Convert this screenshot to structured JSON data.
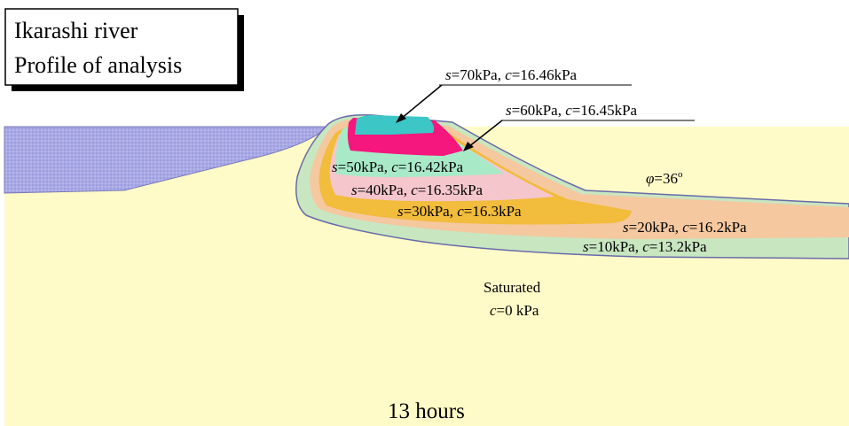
{
  "title": {
    "line1": "Ikarashi river",
    "line2": "Profile of analysis"
  },
  "zones": [
    {
      "s": "s",
      "s_value": "=70kPa, ",
      "c": "c",
      "c_value": "=16.46kPa"
    },
    {
      "s": "s",
      "s_value": "=60kPa, ",
      "c": "c",
      "c_value": "=16.45kPa"
    },
    {
      "s": "s",
      "s_value": "=50kPa, ",
      "c": "c",
      "c_value": "=16.42kPa"
    },
    {
      "s": "s",
      "s_value": "=40kPa, ",
      "c": "c",
      "c_value": "=16.35kPa"
    },
    {
      "s": "s",
      "s_value": "=30kPa, ",
      "c": "c",
      "c_value": "=16.3kPa"
    },
    {
      "s": "s",
      "s_value": "=20kPa, ",
      "c": "c",
      "c_value": "=16.2kPa"
    },
    {
      "s": "s",
      "s_value": "=10kPa, ",
      "c": "c",
      "c_value": "=13.2kPa"
    }
  ],
  "phi": {
    "symbol": "φ",
    "value": "=36",
    "unit": "o"
  },
  "saturated": {
    "line1": "Saturated",
    "c": "c",
    "c_value": "=0 kPa"
  },
  "time_label": "13 hours",
  "colors": {
    "water": "#A9A9E6",
    "foundation": "#FFFBC8",
    "zone_10": "#C8E6C0",
    "zone_20": "#F5C8A0",
    "zone_30": "#F2BC3C",
    "zone_40": "#F5C6CC",
    "zone_50": "#A8EAC8",
    "zone_60": "#F5167E",
    "zone_70": "#3CC6C6",
    "outline": "#6A6AAA"
  }
}
